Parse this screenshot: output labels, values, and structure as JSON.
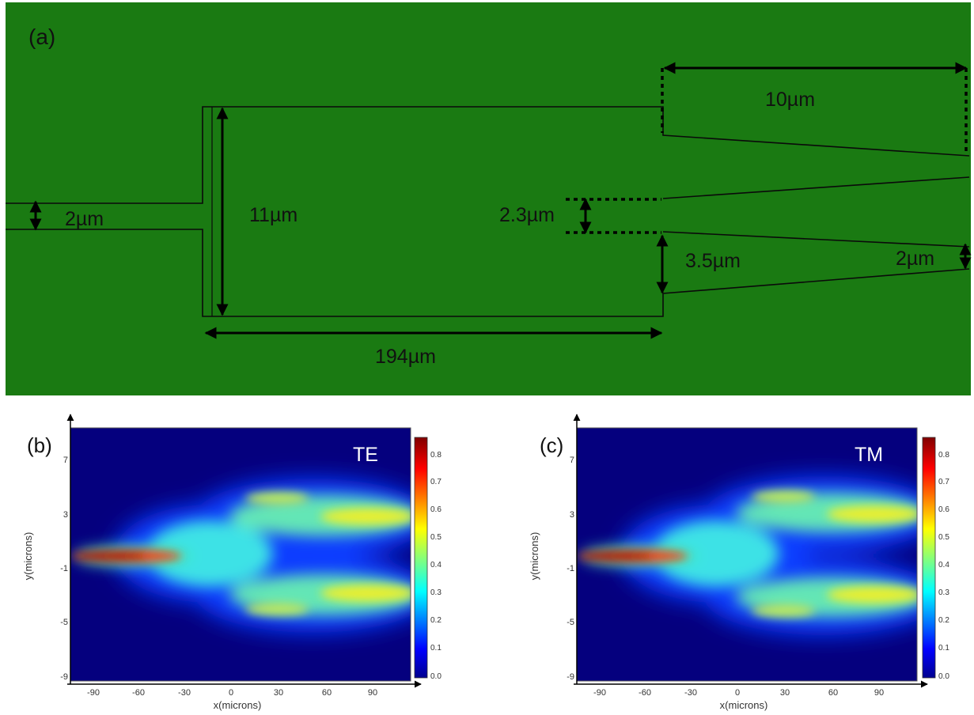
{
  "panel_a": {
    "label": "(a)",
    "dims": {
      "input_width": "2µm",
      "mmi_width": "11µm",
      "mmi_length": "194µm",
      "gap": "2.3µm",
      "offset": "3.5µm",
      "output_width": "2µm",
      "taper_length": "10µm"
    },
    "colors": {
      "background": "#1a7a12",
      "line": "#0a0a0a"
    }
  },
  "panel_b": {
    "label": "(b)",
    "mode": "TE",
    "xlabel": "x(microns)",
    "ylabel": "y(microns)",
    "x_ticks": [
      "-90",
      "-60",
      "-30",
      "0",
      "30",
      "60",
      "90"
    ],
    "y_ticks": [
      "7",
      "3",
      "-1",
      "-5",
      "-9"
    ],
    "colorbar_ticks": [
      "0.8",
      "0.7",
      "0.6",
      "0.5",
      "0.4",
      "0.3",
      "0.2",
      "0.1",
      "0.0"
    ]
  },
  "panel_c": {
    "label": "(c)",
    "mode": "TM",
    "xlabel": "x(microns)",
    "ylabel": "y(microns)",
    "x_ticks": [
      "-90",
      "-60",
      "-30",
      "0",
      "30",
      "60",
      "90"
    ],
    "y_ticks": [
      "7",
      "3",
      "-1",
      "-5",
      "-9"
    ],
    "colorbar_ticks": [
      "0.8",
      "0.7",
      "0.6",
      "0.5",
      "0.4",
      "0.3",
      "0.2",
      "0.1",
      "0.0"
    ]
  }
}
